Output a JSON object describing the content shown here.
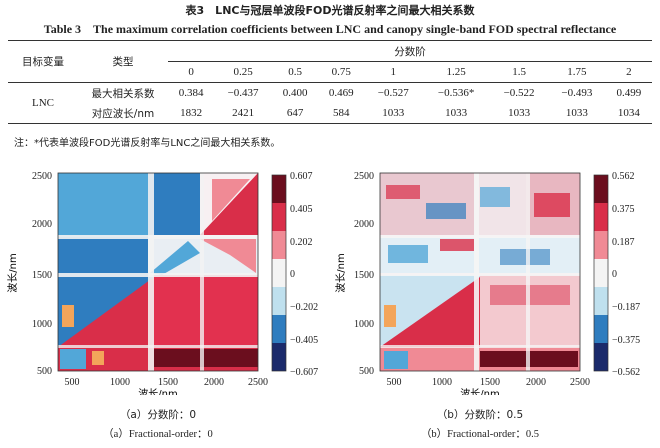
{
  "table": {
    "title_cn": "表3　LNC与冠层单波段FOD光谱反射率之间最大相关系数",
    "title_en": "Table 3　The maximum correlation coefficients between LNC and canopy single-band FOD spectral reflectance",
    "header_target": "目标变量",
    "header_type": "类型",
    "header_order": "分数阶",
    "orders": [
      "0",
      "0.25",
      "0.5",
      "0.75",
      "1",
      "1.25",
      "1.5",
      "1.75",
      "2"
    ],
    "target_name": "LNC",
    "rows": [
      {
        "label": "最大相关系数",
        "values": [
          "0.384",
          "−0.437",
          "0.400",
          "0.469",
          "−0.527",
          "−0.536*",
          "−0.522",
          "−0.493",
          "0.499"
        ]
      },
      {
        "label": "对应波长/nm",
        "values": [
          "1832",
          "2421",
          "647",
          "584",
          "1033",
          "1033",
          "1033",
          "1033",
          "1034"
        ]
      }
    ],
    "note": "注：*代表单波段FOD光谱反射率与LNC之间最大相关系数。"
  },
  "figure": {
    "colors": {
      "deep_red": "#6b0e1e",
      "red": "#d92e49",
      "pink": "#f08a95",
      "light": "#f8d6da",
      "white": "#f4f4f4",
      "lightblue": "#bfe0ee",
      "blue": "#52a7d8",
      "mid_blue": "#2f7dbf",
      "navy": "#1b2a6b",
      "orange": "#f3a55a",
      "grey": "#cfcfcf"
    },
    "panels": [
      {
        "ylabel": "波长/nm",
        "xlabel": "波长/nm",
        "x_ticks": [
          "500",
          "1000",
          "1500",
          "2000",
          "2500"
        ],
        "y_ticks": [
          "500",
          "1000",
          "1500",
          "2000",
          "2500"
        ],
        "colorbar_ticks": [
          "0.607",
          "0.405",
          "0.202",
          "0",
          "−0.202",
          "−0.405",
          "−0.607"
        ],
        "caption_cn": "（a）分数阶：0",
        "caption_en": "（a）Fractional-order：0"
      },
      {
        "ylabel": "波长/nm",
        "xlabel": "波长/nm",
        "x_ticks": [
          "500",
          "1000",
          "1500",
          "2000",
          "2500"
        ],
        "y_ticks": [
          "500",
          "1000",
          "1500",
          "2000",
          "2500"
        ],
        "colorbar_ticks": [
          "0.562",
          "0.375",
          "0.187",
          "0",
          "−0.187",
          "−0.375",
          "−0.562"
        ],
        "caption_cn": "（b）分数阶：0.5",
        "caption_en": "（b）Fractional-order：0.5"
      }
    ]
  }
}
